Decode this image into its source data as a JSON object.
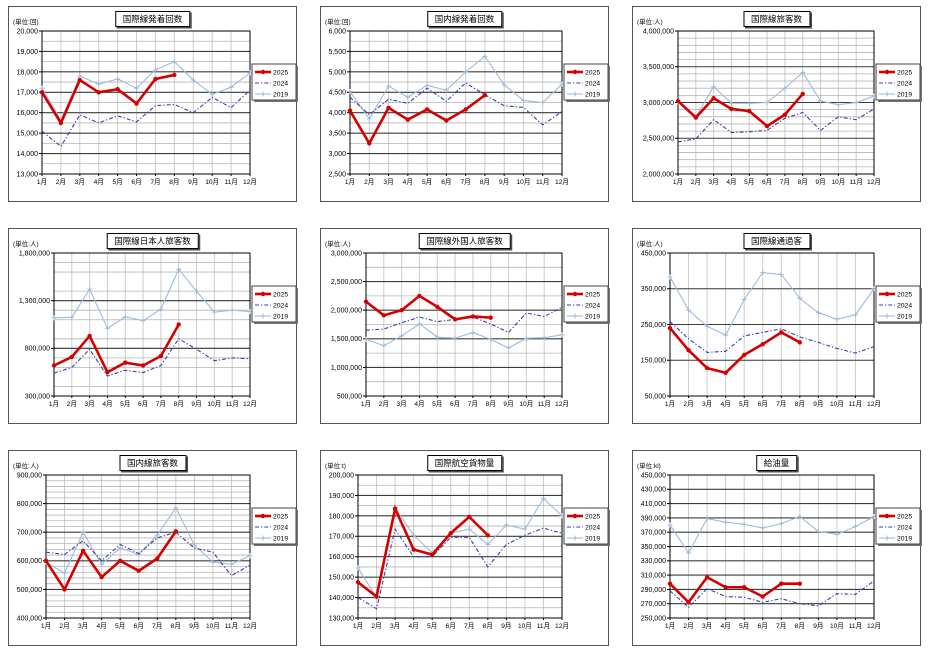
{
  "page": {
    "background": "#ffffff"
  },
  "colors": {
    "series_2025": "#d40000",
    "series_2024": "#3a3ab4",
    "series_2019": "#9fbcdc",
    "grid_major": "#3c3c3c",
    "grid_minor": "#b4b4b4",
    "grid_vertical": "#cccccc",
    "plot_border": "#000000",
    "legend_border": "#444444",
    "legend_shadow": "#777777"
  },
  "months": [
    "1月",
    "2月",
    "3月",
    "4月",
    "5月",
    "6月",
    "7月",
    "8月",
    "9月",
    "10月",
    "11月",
    "12月"
  ],
  "legend_labels": [
    "2025",
    "2024",
    "2019"
  ],
  "chart_data": [
    {
      "type": "line",
      "title": "国際線発着回数",
      "unit": "(単位:回)",
      "ylim": [
        13000,
        20000
      ],
      "ytick": 1000,
      "yminor": 500,
      "xlabel": "",
      "ylabel": "",
      "legend_position": "right",
      "grid": true,
      "series": [
        {
          "name": "2025",
          "values": [
            17000,
            15500,
            17600,
            17000,
            17150,
            16450,
            17650,
            17850
          ]
        },
        {
          "name": "2024",
          "values": [
            15100,
            14350,
            15900,
            15500,
            15850,
            15550,
            16350,
            16400,
            16000,
            16750,
            16250,
            17100
          ]
        },
        {
          "name": "2019",
          "values": [
            17200,
            15650,
            17800,
            17400,
            17650,
            17200,
            18100,
            18500,
            17600,
            16900,
            17250,
            17950
          ]
        }
      ]
    },
    {
      "type": "line",
      "title": "国内線発着回数",
      "unit": "(単位:回)",
      "ylim": [
        2500,
        6000
      ],
      "ytick": 500,
      "yminor": 250,
      "xlabel": "",
      "ylabel": "",
      "legend_position": "right",
      "grid": true,
      "series": [
        {
          "name": "2025",
          "values": [
            4050,
            3250,
            4120,
            3830,
            4080,
            3810,
            4080,
            4430
          ]
        },
        {
          "name": "2024",
          "values": [
            4380,
            3950,
            4330,
            4230,
            4600,
            4280,
            4730,
            4440,
            4170,
            4130,
            3700,
            4030
          ]
        },
        {
          "name": "2019",
          "values": [
            4520,
            3850,
            4650,
            4380,
            4670,
            4550,
            5000,
            5380,
            4680,
            4300,
            4250,
            4700
          ]
        }
      ]
    },
    {
      "type": "line",
      "title": "国際線旅客数",
      "unit": "(単位:人)",
      "ylim": [
        2000000,
        4000000
      ],
      "ytick": 500000,
      "yminor": 100000,
      "xlabel": "",
      "ylabel": "",
      "legend_position": "right",
      "grid": true,
      "series": [
        {
          "name": "2025",
          "values": [
            3020000,
            2790000,
            3060000,
            2910000,
            2880000,
            2670000,
            2830000,
            3120000
          ]
        },
        {
          "name": "2024",
          "values": [
            2450000,
            2490000,
            2760000,
            2580000,
            2590000,
            2610000,
            2780000,
            2860000,
            2610000,
            2800000,
            2760000,
            2910000
          ]
        },
        {
          "name": "2019",
          "values": [
            3010000,
            2800000,
            3220000,
            2990000,
            2990000,
            3000000,
            3200000,
            3420000,
            3020000,
            2970000,
            3000000,
            3090000
          ]
        }
      ]
    },
    {
      "type": "line",
      "title": "国際線日本人旅客数",
      "unit": "(単位:人)",
      "ylim": [
        300000,
        1800000
      ],
      "ytick": 500000,
      "yminor": 100000,
      "xlabel": "",
      "ylabel": "",
      "legend_position": "right",
      "grid": true,
      "series": [
        {
          "name": "2025",
          "values": [
            620000,
            710000,
            930000,
            550000,
            650000,
            620000,
            720000,
            1050000
          ]
        },
        {
          "name": "2024",
          "values": [
            540000,
            600000,
            790000,
            510000,
            570000,
            545000,
            620000,
            900000,
            790000,
            670000,
            700000,
            690000
          ]
        },
        {
          "name": "2019",
          "values": [
            1120000,
            1125000,
            1420000,
            1010000,
            1130000,
            1090000,
            1210000,
            1630000,
            1400000,
            1180000,
            1200000,
            1185000
          ]
        }
      ]
    },
    {
      "type": "line",
      "title": "国際線外国人旅客数",
      "unit": "(単位:人)",
      "ylim": [
        500000,
        3000000
      ],
      "ytick": 500000,
      "yminor": 250000,
      "xlabel": "",
      "ylabel": "",
      "legend_position": "right",
      "grid": true,
      "series": [
        {
          "name": "2025",
          "values": [
            2150000,
            1910000,
            2000000,
            2250000,
            2060000,
            1840000,
            1890000,
            1870000
          ]
        },
        {
          "name": "2024",
          "values": [
            1650000,
            1670000,
            1780000,
            1880000,
            1800000,
            1840000,
            1880000,
            1760000,
            1610000,
            1950000,
            1890000,
            2050000
          ]
        },
        {
          "name": "2019",
          "values": [
            1490000,
            1380000,
            1550000,
            1760000,
            1530000,
            1510000,
            1610000,
            1490000,
            1340000,
            1510000,
            1520000,
            1570000
          ]
        }
      ]
    },
    {
      "type": "line",
      "title": "国際線通過客",
      "unit": "(単位:人)",
      "ylim": [
        50000,
        450000
      ],
      "ytick": 100000,
      "yminor": 50000,
      "xlabel": "",
      "ylabel": "",
      "legend_position": "right",
      "grid": true,
      "series": [
        {
          "name": "2025",
          "values": [
            240000,
            178000,
            128000,
            115000,
            165000,
            195000,
            228000,
            200000
          ]
        },
        {
          "name": "2024",
          "values": [
            258000,
            210000,
            172000,
            175000,
            218000,
            228000,
            238000,
            215000,
            200000,
            183000,
            170000,
            188000
          ]
        },
        {
          "name": "2019",
          "values": [
            383000,
            290000,
            245000,
            220000,
            320000,
            395000,
            390000,
            323000,
            283000,
            265000,
            277000,
            350000
          ]
        }
      ]
    },
    {
      "type": "line",
      "title": "国内線旅客数",
      "unit": "(単位:人)",
      "ylim": [
        400000,
        900000
      ],
      "ytick": 100000,
      "yminor": 20000,
      "xlabel": "",
      "ylabel": "",
      "legend_position": "right",
      "grid": true,
      "series": [
        {
          "name": "2025",
          "values": [
            600000,
            500000,
            635000,
            543000,
            600000,
            565000,
            608000,
            703000
          ]
        },
        {
          "name": "2024",
          "values": [
            630000,
            622000,
            670000,
            600000,
            657000,
            625000,
            680000,
            700000,
            645000,
            630000,
            548000,
            585000
          ]
        },
        {
          "name": "2019",
          "values": [
            595000,
            557000,
            700000,
            588000,
            645000,
            622000,
            690000,
            785000,
            655000,
            595000,
            588000,
            618000
          ]
        }
      ]
    },
    {
      "type": "line",
      "title": "国際航空貨物量",
      "unit": "(単位:t)",
      "ylim": [
        130000,
        200000
      ],
      "ytick": 10000,
      "yminor": 5000,
      "xlabel": "",
      "ylabel": "",
      "legend_position": "right",
      "grid": true,
      "series": [
        {
          "name": "2025",
          "values": [
            147500,
            140500,
            183500,
            163500,
            161000,
            171500,
            179500,
            170500
          ]
        },
        {
          "name": "2024",
          "values": [
            140000,
            134500,
            173500,
            160000,
            160000,
            169500,
            169500,
            155000,
            166000,
            170500,
            174000,
            171500
          ]
        },
        {
          "name": "2019",
          "values": [
            154500,
            140000,
            184000,
            170500,
            162000,
            171500,
            173500,
            166000,
            175500,
            173500,
            188500,
            180000
          ]
        }
      ]
    },
    {
      "type": "line",
      "title": "給油量",
      "unit": "(単位:kl)",
      "ylim": [
        250000,
        450000
      ],
      "ytick": 20000,
      "yminor": null,
      "xlabel": "",
      "ylabel": "",
      "legend_position": "right",
      "grid": true,
      "series": [
        {
          "name": "2025",
          "values": [
            298000,
            272000,
            307000,
            293000,
            293000,
            280000,
            298000,
            298000
          ]
        },
        {
          "name": "2024",
          "values": [
            288000,
            265000,
            291000,
            280000,
            279000,
            272000,
            277000,
            270000,
            267000,
            284000,
            283000,
            302000
          ]
        },
        {
          "name": "2019",
          "values": [
            380000,
            341000,
            389000,
            384000,
            381000,
            376000,
            382000,
            392000,
            371000,
            367000,
            378000,
            392000
          ]
        }
      ]
    }
  ]
}
